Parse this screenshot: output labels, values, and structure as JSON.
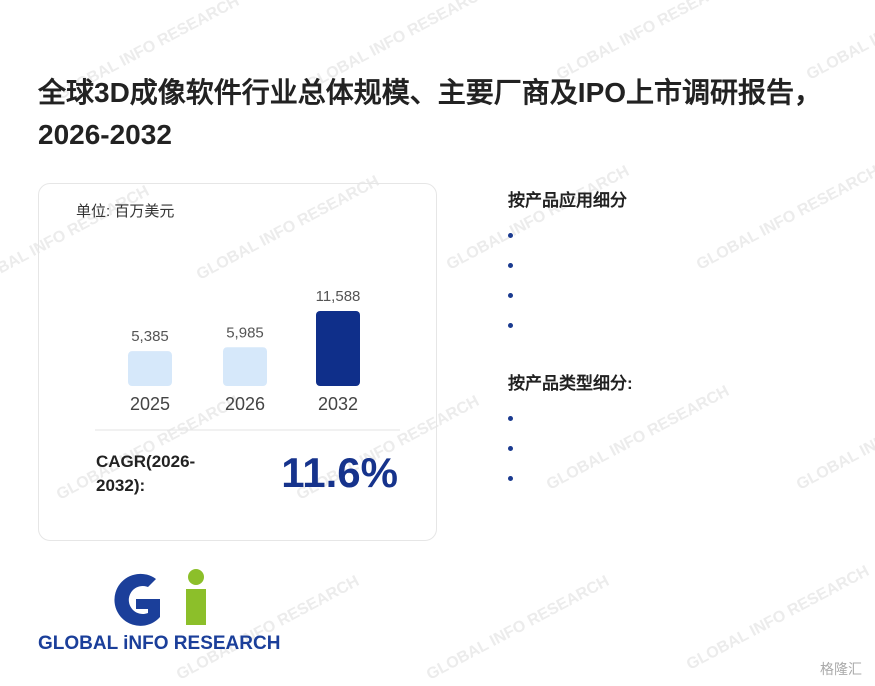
{
  "header": {
    "title": "全球3D成像软件行业总体规模、主要厂商及IPO上市调研报告，2026-2032"
  },
  "chart_data": {
    "type": "bar",
    "unit": "单位: 百万美元",
    "categories": [
      "2025",
      "2026",
      "2032"
    ],
    "values": [
      5385,
      5985,
      11588
    ],
    "value_labels": [
      "5,385",
      "5,985",
      "11,588"
    ],
    "colors": [
      "#d6e8fa",
      "#d6e8fa",
      "#0f2f8a"
    ]
  },
  "cagr": {
    "label": "CAGR(2026-2032):",
    "value": "11.6%"
  },
  "segments": [
    {
      "title": "按产品应用细分"
    },
    {
      "title": "按产品类型细分:"
    }
  ],
  "logo": {
    "text": "GLOBAL iNFO RESEARCH"
  },
  "watermark": "GLOBAL INFO RESEARCH",
  "corner_mark": "格隆汇"
}
